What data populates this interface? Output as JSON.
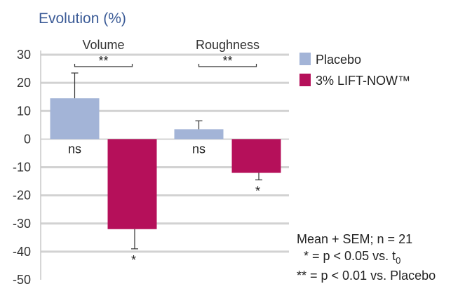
{
  "chart_data": {
    "type": "bar",
    "title": "Evolution (%)",
    "categories": [
      "Volume",
      "Roughness"
    ],
    "series": [
      {
        "name": "Placebo",
        "color": "#a3b4d7",
        "values": [
          14.5,
          3.5
        ],
        "errors": [
          9,
          3
        ]
      },
      {
        "name": "3% LIFT-NOW™",
        "color": "#b5105a",
        "values": [
          -32,
          -12
        ],
        "errors": [
          7,
          2.5
        ]
      }
    ],
    "ylim": [
      -50,
      30
    ],
    "yticks": [
      30,
      20,
      10,
      0,
      -10,
      -20,
      -30,
      -40,
      -50
    ],
    "grid": true,
    "legend_position": "top-right",
    "bar_annotations": [
      {
        "category": 0,
        "series": 0,
        "label": "ns"
      },
      {
        "category": 0,
        "series": 1,
        "label": "*"
      },
      {
        "category": 1,
        "series": 0,
        "label": "ns"
      },
      {
        "category": 1,
        "series": 1,
        "label": "*"
      }
    ],
    "brackets": [
      {
        "category": 0,
        "label": "**"
      },
      {
        "category": 1,
        "label": "**"
      }
    ],
    "notes": {
      "line1": "Mean + SEM; n = 21",
      "line2_prefix": "* = p < 0.05 vs. t",
      "line2_sub": "0",
      "line3": "** = p < 0.01 vs. Placebo"
    }
  }
}
